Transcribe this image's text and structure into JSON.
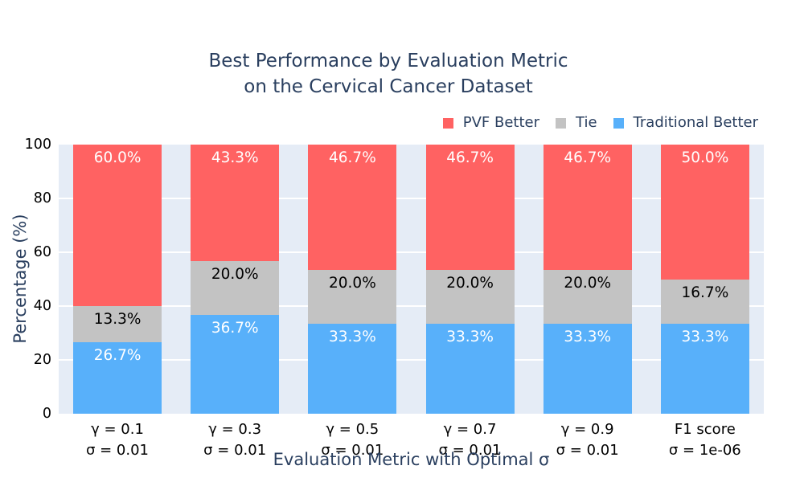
{
  "figure": {
    "title_line1": "Best Performance by Evaluation Metric",
    "title_line2": "on the Cervical Cancer Dataset",
    "x_axis_title": "Evaluation Metric with Optimal σ",
    "y_axis_title": "Percentage (%)"
  },
  "legend": {
    "position": "top-right",
    "items": [
      {
        "label": "PVF Better",
        "color": "#FF6262"
      },
      {
        "label": "Tie",
        "color": "#C3C3C3"
      },
      {
        "label": "Traditional Better",
        "color": "#58B0FA"
      }
    ]
  },
  "chart_data": {
    "type": "bar",
    "stacked": true,
    "title": "Best Performance by Evaluation Metric on the Cervical Cancer Dataset",
    "xlabel": "Evaluation Metric with Optimal σ",
    "ylabel": "Percentage (%)",
    "ylim": [
      0,
      100
    ],
    "yticks": [
      0,
      20,
      40,
      60,
      80,
      100
    ],
    "grid": true,
    "plot_bg_color": "#E5ECF6",
    "grid_color": "#FFFFFF",
    "title_color": "#2A3F5F",
    "legend_position": "top-right",
    "categories": [
      [
        "γ = 0.1",
        "σ = 0.01"
      ],
      [
        "γ = 0.3",
        "σ = 0.01"
      ],
      [
        "γ = 0.5",
        "σ = 0.01"
      ],
      [
        "γ = 0.7",
        "σ = 0.01"
      ],
      [
        "γ = 0.9",
        "σ = 0.01"
      ],
      [
        "F1 score",
        "σ = 1e-06"
      ]
    ],
    "series": [
      {
        "name": "Traditional Better",
        "color": "#58B0FA",
        "label_color": "#FFFFFF",
        "values": [
          26.7,
          36.7,
          33.3,
          33.3,
          33.3,
          33.3
        ],
        "labels": [
          "26.7%",
          "36.7%",
          "33.3%",
          "33.3%",
          "33.3%",
          "33.3%"
        ]
      },
      {
        "name": "Tie",
        "color": "#C3C3C3",
        "label_color": "#000000",
        "values": [
          13.3,
          20.0,
          20.0,
          20.0,
          20.0,
          16.7
        ],
        "labels": [
          "13.3%",
          "20.0%",
          "20.0%",
          "20.0%",
          "20.0%",
          "16.7%"
        ]
      },
      {
        "name": "PVF Better",
        "color": "#FF6262",
        "label_color": "#FFFFFF",
        "values": [
          60.0,
          43.3,
          46.7,
          46.7,
          46.7,
          50.0
        ],
        "labels": [
          "60.0%",
          "43.3%",
          "46.7%",
          "46.7%",
          "46.7%",
          "50.0%"
        ]
      }
    ]
  }
}
